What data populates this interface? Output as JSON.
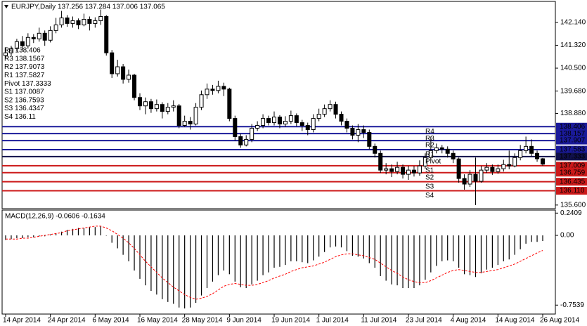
{
  "chart_data": [
    {
      "type": "candlestick",
      "title": "EURJPY,Daily  137.256 137.284 137.006 137.065",
      "categories": [
        "14 Apr 2014",
        null,
        null,
        null,
        null,
        null,
        null,
        null,
        "24 Apr 2014",
        null,
        null,
        null,
        null,
        null,
        null,
        null,
        "6 May 2014",
        null,
        null,
        null,
        null,
        null,
        null,
        null,
        "16 May 2014",
        null,
        null,
        null,
        null,
        null,
        null,
        null,
        "28 May 2014",
        null,
        null,
        null,
        null,
        null,
        null,
        null,
        "9 Jun 2014",
        null,
        null,
        null,
        null,
        null,
        null,
        null,
        "19 Jun 2014",
        null,
        null,
        null,
        null,
        null,
        null,
        null,
        "1 Jul 2014",
        null,
        null,
        null,
        null,
        null,
        null,
        null,
        "11 Jul 2014",
        null,
        null,
        null,
        null,
        null,
        null,
        null,
        "23 Jul 2014",
        null,
        null,
        null,
        null,
        null,
        null,
        null,
        "4 Aug 2014",
        null,
        null,
        null,
        null,
        null,
        null,
        null,
        "14 Aug 2014",
        null,
        null,
        null,
        null,
        null,
        null,
        null,
        "26 Aug 2014"
      ],
      "open": [
        140.95,
        141.05,
        141.2,
        141.45,
        141.3,
        141.6,
        141.55,
        141.75,
        141.5,
        141.85,
        142.05,
        142.3,
        142.1,
        142.2,
        142.05,
        142.25,
        142.1,
        142.2,
        142.35,
        141.05,
        140.3,
        140.55,
        140.1,
        140.25,
        139.45,
        139.15,
        139.3,
        139.05,
        139.2,
        138.95,
        139.1,
        139.15,
        138.45,
        138.6,
        138.5,
        139.1,
        139.55,
        139.75,
        139.7,
        139.85,
        139.75,
        138.7,
        138.05,
        137.75,
        137.95,
        138.35,
        138.45,
        138.7,
        138.55,
        138.75,
        138.5,
        138.6,
        138.8,
        138.55,
        138.45,
        138.3,
        138.7,
        138.85,
        139.05,
        139.2,
        138.85,
        138.6,
        138.35,
        138.1,
        138.3,
        138.2,
        137.7,
        137.45,
        136.85,
        136.9,
        136.8,
        136.95,
        136.7,
        136.85,
        136.75,
        137.0,
        137.3,
        137.55,
        137.65,
        137.6,
        137.45,
        137.25,
        136.55,
        136.35,
        136.7,
        136.45,
        136.85,
        136.95,
        136.8,
        136.9,
        137.05,
        137.0,
        137.3,
        137.55,
        137.7,
        137.45,
        137.256
      ],
      "high": [
        141.25,
        141.3,
        141.55,
        141.65,
        141.75,
        141.72,
        141.95,
        141.85,
        142.0,
        142.3,
        142.55,
        142.4,
        142.35,
        142.28,
        142.45,
        142.35,
        142.32,
        142.6,
        142.4,
        141.15,
        140.8,
        140.65,
        140.45,
        140.3,
        139.6,
        139.45,
        139.4,
        139.38,
        139.28,
        139.25,
        139.35,
        139.22,
        138.8,
        138.75,
        139.25,
        139.7,
        139.95,
        139.9,
        140.05,
        139.98,
        139.8,
        138.8,
        138.15,
        138.1,
        138.5,
        138.6,
        138.85,
        138.8,
        138.95,
        138.82,
        138.78,
        138.98,
        138.88,
        138.65,
        138.55,
        138.85,
        139.05,
        139.2,
        139.35,
        139.3,
        138.95,
        138.7,
        138.45,
        138.5,
        138.45,
        138.3,
        137.8,
        137.55,
        137.1,
        137.05,
        137.15,
        137.05,
        137.0,
        137.0,
        137.2,
        137.45,
        138.05,
        137.8,
        137.75,
        137.7,
        137.55,
        137.3,
        136.7,
        136.85,
        137.3,
        137.0,
        137.1,
        137.05,
        137.05,
        137.22,
        137.55,
        137.45,
        137.75,
        138.05,
        137.95,
        137.55,
        137.284
      ],
      "low": [
        140.85,
        140.95,
        141.1,
        141.15,
        141.2,
        141.4,
        141.45,
        141.3,
        141.42,
        141.75,
        141.95,
        141.98,
        141.95,
        141.9,
        142.0,
        141.85,
        141.95,
        142.05,
        140.95,
        140.15,
        140.2,
        139.95,
        139.98,
        139.35,
        139.0,
        138.85,
        138.9,
        138.95,
        138.7,
        138.85,
        138.95,
        138.35,
        138.4,
        138.3,
        138.45,
        139.0,
        139.4,
        139.55,
        139.6,
        139.5,
        138.6,
        137.9,
        137.65,
        137.7,
        137.85,
        138.25,
        138.35,
        138.45,
        138.45,
        138.35,
        138.4,
        138.5,
        138.42,
        138.25,
        138.1,
        138.2,
        138.6,
        138.75,
        138.95,
        138.7,
        138.45,
        138.2,
        137.95,
        137.85,
        138.0,
        137.6,
        137.3,
        136.75,
        136.7,
        136.6,
        136.7,
        136.55,
        136.5,
        136.62,
        136.65,
        136.9,
        137.2,
        137.45,
        137.45,
        137.3,
        137.1,
        136.4,
        136.15,
        136.25,
        135.6,
        136.4,
        136.75,
        136.68,
        136.72,
        136.8,
        136.88,
        136.95,
        137.2,
        137.45,
        137.35,
        137.15,
        137.006
      ],
      "close": [
        141.05,
        141.2,
        141.45,
        141.3,
        141.6,
        141.55,
        141.75,
        141.5,
        141.85,
        142.05,
        142.3,
        142.1,
        142.2,
        142.05,
        142.25,
        142.1,
        142.2,
        142.35,
        141.05,
        140.3,
        140.55,
        140.1,
        140.25,
        139.45,
        139.15,
        139.3,
        139.05,
        139.2,
        138.95,
        139.1,
        139.15,
        138.45,
        138.6,
        138.5,
        139.1,
        139.55,
        139.75,
        139.7,
        139.85,
        139.75,
        138.7,
        138.05,
        137.75,
        137.95,
        138.35,
        138.45,
        138.7,
        138.55,
        138.75,
        138.5,
        138.6,
        138.8,
        138.55,
        138.45,
        138.3,
        138.7,
        138.85,
        139.05,
        139.2,
        138.85,
        138.6,
        138.35,
        138.1,
        138.3,
        138.2,
        137.7,
        137.45,
        136.85,
        136.9,
        136.8,
        136.95,
        136.7,
        136.85,
        136.75,
        137.0,
        137.3,
        137.55,
        137.65,
        137.6,
        137.45,
        137.25,
        136.55,
        136.35,
        136.7,
        136.45,
        136.85,
        136.95,
        136.8,
        136.9,
        137.05,
        137.0,
        137.3,
        137.55,
        137.7,
        137.45,
        137.256,
        137.065
      ],
      "ylim": [
        135.47,
        142.89
      ],
      "yticks": [
        {
          "value": 142.14,
          "label": "142.140"
        },
        {
          "value": 141.32,
          "label": "141.320"
        },
        {
          "value": 140.5,
          "label": "140.500"
        },
        {
          "value": 139.68,
          "label": "139.680"
        },
        {
          "value": 138.88,
          "label": "138.880"
        },
        {
          "value": 135.6,
          "label": "135.600"
        }
      ],
      "levels": [
        {
          "name": "R4",
          "value": 138.406,
          "axis_label": "138.406",
          "legend": "R4 138.406",
          "color": "#1a1a9a"
        },
        {
          "name": "R3",
          "value": 138.1567,
          "axis_label": "138.157",
          "legend": "R3 138.1567",
          "color": "#1a1a9a"
        },
        {
          "name": "R2",
          "value": 137.9073,
          "axis_label": "137.907",
          "legend": "R2 137.9073",
          "color": "#1a1a9a"
        },
        {
          "name": "R1",
          "value": 137.5827,
          "axis_label": "137.583",
          "legend": "R1 137.5827",
          "color": "#1a1a9a"
        },
        {
          "name": "Pivot",
          "value": 137.3333,
          "axis_label": "137.333",
          "legend": "Pivot 137.3333",
          "color": "#10104a"
        },
        {
          "name": "S1",
          "value": 137.0087,
          "axis_label": "137.009",
          "legend": "S1 137.0087",
          "color": "#cc1a1a"
        },
        {
          "name": "S2",
          "value": 136.7593,
          "axis_label": "136.759",
          "legend": "S2 136.7593",
          "color": "#cc1a1a"
        },
        {
          "name": "S3",
          "value": 136.4347,
          "axis_label": "136.435",
          "legend": "S3 136.4347",
          "color": "#cc1a1a"
        },
        {
          "name": "S4",
          "value": 136.11,
          "axis_label": "136.110",
          "legend": "S4 136.11",
          "color": "#cc1a1a"
        }
      ],
      "level_name_color": "#e05050"
    },
    {
      "type": "macd",
      "title": "MACD(12,26,9) -0.0606 -0.1634",
      "series": [
        {
          "color": "#000000",
          "values": [
            -0.05,
            -0.04,
            -0.03,
            -0.03,
            -0.02,
            -0.02,
            -0.01,
            -0.01,
            0.01,
            0.02,
            0.04,
            0.06,
            0.07,
            0.08,
            0.08,
            0.09,
            0.09,
            0.1,
            0.0,
            -0.08,
            -0.14,
            -0.21,
            -0.28,
            -0.38,
            -0.47,
            -0.54,
            -0.6,
            -0.64,
            -0.69,
            -0.72,
            -0.74,
            -0.78,
            -0.79,
            -0.78,
            -0.73,
            -0.65,
            -0.57,
            -0.5,
            -0.43,
            -0.38,
            -0.42,
            -0.5,
            -0.56,
            -0.57,
            -0.53,
            -0.49,
            -0.43,
            -0.4,
            -0.35,
            -0.34,
            -0.32,
            -0.28,
            -0.28,
            -0.29,
            -0.3,
            -0.27,
            -0.23,
            -0.18,
            -0.13,
            -0.12,
            -0.13,
            -0.17,
            -0.22,
            -0.23,
            -0.25,
            -0.3,
            -0.35,
            -0.44,
            -0.49,
            -0.53,
            -0.54,
            -0.57,
            -0.57,
            -0.57,
            -0.54,
            -0.48,
            -0.4,
            -0.33,
            -0.28,
            -0.27,
            -0.28,
            -0.35,
            -0.42,
            -0.43,
            -0.45,
            -0.41,
            -0.37,
            -0.35,
            -0.32,
            -0.28,
            -0.26,
            -0.21,
            -0.15,
            -0.09,
            -0.07,
            -0.07,
            -0.0606
          ]
        },
        {
          "color": "#ff0000",
          "dashed": true,
          "values": [
            -0.04,
            -0.04,
            -0.04,
            -0.03,
            -0.03,
            -0.02,
            -0.01,
            0.0,
            0.01,
            0.02,
            0.03,
            0.05,
            0.06,
            0.07,
            0.08,
            0.09,
            0.1,
            0.1,
            0.08,
            0.05,
            0.01,
            -0.03,
            -0.08,
            -0.14,
            -0.21,
            -0.28,
            -0.34,
            -0.4,
            -0.46,
            -0.51,
            -0.56,
            -0.6,
            -0.64,
            -0.67,
            -0.69,
            -0.68,
            -0.66,
            -0.63,
            -0.59,
            -0.55,
            -0.53,
            -0.52,
            -0.53,
            -0.54,
            -0.54,
            -0.53,
            -0.51,
            -0.49,
            -0.46,
            -0.44,
            -0.42,
            -0.39,
            -0.37,
            -0.35,
            -0.34,
            -0.33,
            -0.31,
            -0.29,
            -0.26,
            -0.23,
            -0.21,
            -0.2,
            -0.2,
            -0.21,
            -0.22,
            -0.24,
            -0.26,
            -0.3,
            -0.34,
            -0.38,
            -0.41,
            -0.45,
            -0.48,
            -0.5,
            -0.51,
            -0.51,
            -0.49,
            -0.46,
            -0.43,
            -0.4,
            -0.38,
            -0.37,
            -0.38,
            -0.39,
            -0.4,
            -0.4,
            -0.39,
            -0.38,
            -0.37,
            -0.35,
            -0.33,
            -0.31,
            -0.28,
            -0.25,
            -0.22,
            -0.19,
            -0.1634
          ]
        }
      ],
      "ylim": [
        -0.843,
        0.266
      ],
      "yticks": [
        0.2409,
        {
          "value": 0,
          "label": "0.00"
        },
        -0.7539
      ]
    }
  ]
}
